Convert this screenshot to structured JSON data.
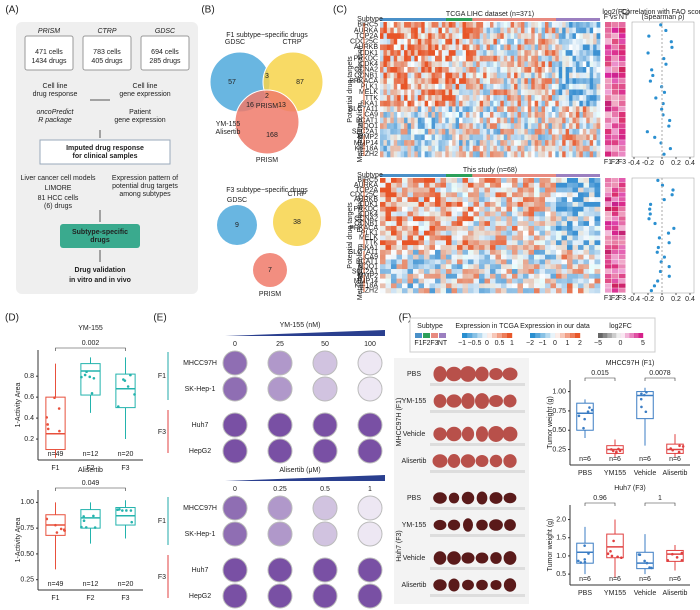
{
  "panels": {
    "a": {
      "label": "(A)",
      "sources": [
        {
          "name": "PRISM",
          "cells": "471 cells",
          "drugs": "1434 drugs"
        },
        {
          "name": "CTRP",
          "cells": "783 cells",
          "drugs": "405 drugs"
        },
        {
          "name": "GDSC",
          "cells": "694 cells",
          "drugs": "285 drugs"
        }
      ],
      "drug_response": [
        "Cell line",
        "drug response"
      ],
      "gene_expression": [
        "Cell line",
        "gene expression"
      ],
      "package": [
        "oncoPredict",
        "R package"
      ],
      "patient": [
        "Patient",
        "gene expression"
      ],
      "imputed": [
        "Imputed drug response",
        "for clinical samples"
      ],
      "liver": "Liver cancer cell models",
      "limore": "LIMORE",
      "liver_sub": [
        "81 HCC cells",
        "(6) drugs"
      ],
      "expression": [
        "Expression pattern of",
        "potential drug targets",
        "among subtypes"
      ],
      "subtype_drugs": [
        "Subtype-specific",
        "drugs"
      ],
      "validation": [
        "Drug validation",
        "in vitro and in vivo"
      ]
    },
    "b": {
      "label": "(B)",
      "title1": "F1 subtype−specific drugs",
      "venn1": {
        "sets": [
          "GDSC",
          "CTRP",
          "PRISM"
        ],
        "counts": [
          57,
          87,
          168,
          3,
          16,
          13,
          2
        ]
      },
      "highlight": [
        "YM-155",
        "Alisertib"
      ],
      "title2": "F3 subtype−specific drugs",
      "venn2": {
        "sets": [
          "GDSC",
          "CTRP",
          "PRISM"
        ],
        "counts": [
          9,
          38,
          7
        ]
      }
    },
    "c": {
      "label": "(C)",
      "title1": "TCGA LIHC dataset (n=371)",
      "title2": "This study (n=68)",
      "subtype": "Subtype",
      "ylabel": "Potential drug targets",
      "genes": [
        "BIRC5",
        "AURKA",
        "TOP2A",
        "CDC25C",
        "AURKB",
        "CDK1",
        "PRKDC",
        "CDK4",
        "CCNA2",
        "CCNB1",
        "PRKACA",
        "PLK1",
        "MELK",
        "TTK",
        "SKA1",
        "SLC7A11",
        "CA9",
        "BCAT1",
        "NQO1",
        "SLC2A1",
        "MMP2",
        "MMP14",
        "KIF18A",
        "EZH2"
      ],
      "groups": [
        "Proliferation",
        "Metabolism",
        "Metastasis"
      ],
      "fc_title": [
        "log2(FC)",
        "F vs NT"
      ],
      "fc_cols": [
        "F1",
        "F2",
        "F3"
      ],
      "corr_title": [
        "Correlation with FAO score",
        "(Spearman ρ)"
      ],
      "corr_ticks": [
        -0.4,
        -0.2,
        0,
        0.2,
        0.4
      ]
    },
    "d": {
      "label": "(D)",
      "charts": [
        {
          "title": "YM-155",
          "ylabel": "1-Activity Area",
          "ylim": [
            0,
            1.05
          ],
          "yticks": [
            0.2,
            0.4,
            0.6,
            0.8
          ],
          "pvalues": [
            {
              "pair": [
                0,
                2
              ],
              "label": "0.002"
            }
          ],
          "groups": [
            {
              "name": "F1",
              "n": "n=49",
              "color": "#e8503c",
              "box": [
                0.02,
                0.1,
                0.25,
                0.6,
                0.92
              ]
            },
            {
              "name": "F2",
              "n": "n=12",
              "color": "#23b3ad",
              "box": [
                0.45,
                0.62,
                0.85,
                0.92,
                0.98
              ]
            },
            {
              "name": "F3",
              "n": "n=20",
              "color": "#23b3ad",
              "box": [
                0.2,
                0.5,
                0.68,
                0.82,
                0.98
              ]
            }
          ]
        },
        {
          "title": "Alisertib",
          "ylabel": "1-Activity Area",
          "ylim": [
            0.15,
            1.12
          ],
          "yticks": [
            0.25,
            {
              "value": 0.5,
              "label": "0.50"
            },
            {
              "value": 0.75,
              "label": "0.75"
            },
            {
              "value": 1,
              "label": "1.00"
            }
          ],
          "pvalues": [
            {
              "pair": [
                0,
                2
              ],
              "label": "0.049"
            }
          ],
          "groups": [
            {
              "name": "F1",
              "n": "n=49",
              "color": "#e8503c",
              "box": [
                0.35,
                0.68,
                0.78,
                0.88,
                1.0
              ]
            },
            {
              "name": "F2",
              "n": "n=12",
              "color": "#23b3ad",
              "box": [
                0.6,
                0.75,
                0.85,
                0.93,
                1.0
              ]
            },
            {
              "name": "F3",
              "n": "n=20",
              "color": "#23b3ad",
              "box": [
                0.65,
                0.78,
                0.87,
                0.95,
                1.02
              ]
            }
          ]
        }
      ]
    },
    "e": {
      "label": "(E)",
      "drugs": [
        {
          "title": "YM-155 (nM)",
          "doses": [
            "0",
            "25",
            "50",
            "100"
          ]
        },
        {
          "title": "Alisertib (μM)",
          "doses": [
            "0",
            "0.25",
            "0.5",
            "1"
          ]
        }
      ],
      "cells": [
        "MHCC97H",
        "SK-Hep-1",
        "Huh7",
        "HepG2"
      ],
      "groups": [
        "F1",
        "F3"
      ]
    },
    "f": {
      "label": "(F)",
      "legend": {
        "subtype": "Subtype",
        "subtypes": [
          "F1",
          "F2",
          "F3",
          "NT"
        ],
        "subtype_colors": [
          "#4a90c8",
          "#2ca05a",
          "#e88a80",
          "#9b7fc0"
        ],
        "tcga": "Expression in TCGA",
        "tcga_ticks": [
          "−1",
          "−0.5",
          "0",
          "0.5",
          "1"
        ],
        "ours": "Expression in our data",
        "ours_ticks": [
          "−2",
          "−1",
          "0",
          "1",
          "2"
        ],
        "fc": "log2FC",
        "fc_ticks": [
          "−5",
          "0",
          "5"
        ]
      },
      "photos": [
        {
          "model": "MHCC97H (F1)",
          "rows": [
            "PBS",
            "YM-155",
            "Vehicle",
            "Alisertib"
          ]
        },
        {
          "model": "Huh7 (F3)",
          "rows": [
            "PBS",
            "YM-155",
            "Vehicle",
            "Alisertib"
          ]
        }
      ],
      "charts": [
        {
          "title": "MHCC97H (F1)",
          "ylabel": "Tumor weight (g)",
          "ylim": [
            0.05,
            1.15
          ],
          "yticks": [
            0.25,
            {
              "value": 0.5,
              "label": "0.50"
            },
            {
              "value": 0.75,
              "label": "0.75"
            },
            {
              "value": 1,
              "label": "1.00"
            }
          ],
          "pvalues": [
            {
              "pair": [
                0,
                1
              ],
              "label": "0.015"
            },
            {
              "pair": [
                2,
                3
              ],
              "label": "0.0078"
            }
          ],
          "groups": [
            {
              "name": "PBS",
              "n": "n=6",
              "color": "#3b7dc4",
              "box": [
                0.4,
                0.5,
                0.72,
                0.85,
                0.9
              ]
            },
            {
              "name": "YM155",
              "n": "n=6",
              "color": "#e04040",
              "box": [
                0.15,
                0.2,
                0.25,
                0.3,
                0.38
              ]
            },
            {
              "name": "Vehicle",
              "n": "n=6",
              "color": "#3b7dc4",
              "box": [
                0.3,
                0.65,
                0.95,
                1.0,
                1.05
              ]
            },
            {
              "name": "Alisertib",
              "n": "n=6",
              "color": "#e04040",
              "box": [
                0.15,
                0.2,
                0.25,
                0.32,
                0.45
              ]
            }
          ]
        },
        {
          "title": "Huh7 (F3)",
          "ylabel": "Tumor weight (g)",
          "ylim": [
            0.2,
            2.4
          ],
          "yticks": [
            0.5,
            {
              "value": 1,
              "label": "1.0"
            },
            1.5,
            {
              "value": 2,
              "label": "2.0"
            }
          ],
          "pvalues": [
            {
              "pair": [
                0,
                1
              ],
              "label": "0.96"
            },
            {
              "pair": [
                2,
                3
              ],
              "label": "1"
            }
          ],
          "groups": [
            {
              "name": "PBS",
              "n": "n=6",
              "color": "#3b7dc4",
              "box": [
                0.5,
                0.8,
                1.1,
                1.35,
                1.8
              ]
            },
            {
              "name": "YM155",
              "n": "n=6",
              "color": "#e04040",
              "box": [
                0.4,
                0.95,
                1.25,
                1.6,
                2.0
              ]
            },
            {
              "name": "Vehicle",
              "n": "n=6",
              "color": "#3b7dc4",
              "box": [
                0.5,
                0.65,
                0.8,
                1.1,
                1.6
              ]
            },
            {
              "name": "Alisertib",
              "n": "n=6",
              "color": "#e04040",
              "box": [
                0.6,
                0.85,
                1.05,
                1.15,
                1.3
              ]
            }
          ]
        }
      ]
    }
  }
}
